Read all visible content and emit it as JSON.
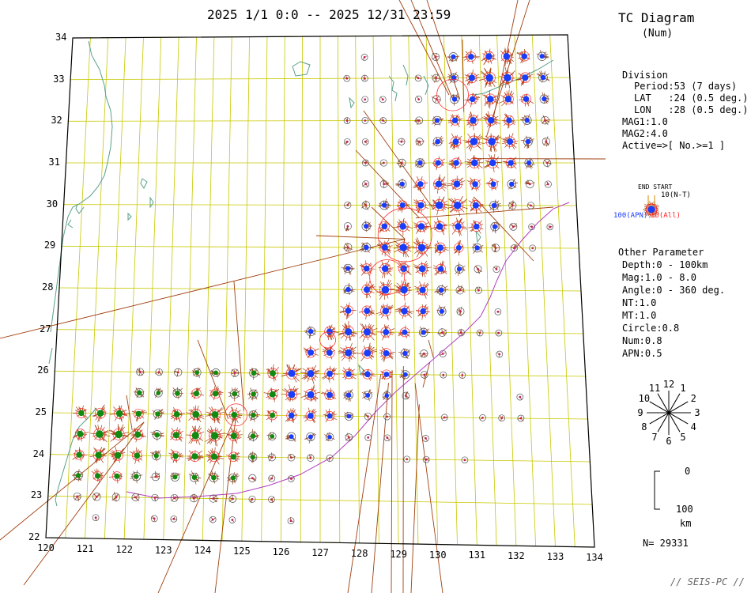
{
  "header": {
    "period_title": "2025 1/1 0:0 -- 2025 12/31 23:59"
  },
  "diagram": {
    "title": "TC Diagram",
    "subtitle": "(Num)"
  },
  "axes": {
    "lat_labels": [
      "34",
      "33",
      "32",
      "31",
      "30",
      "29",
      "28",
      "27",
      "26",
      "25",
      "24",
      "23",
      "22"
    ],
    "lon_labels": [
      "120",
      "121",
      "122",
      "123",
      "124",
      "125",
      "126",
      "127",
      "128",
      "129",
      "130",
      "131",
      "132",
      "133",
      "134"
    ]
  },
  "division": {
    "heading": "Division",
    "period": "Period:53 (7 days)",
    "lat": "LAT   :24 (0.5 deg.)",
    "lon": "LON   :28 (0.5 deg.)",
    "mag1": "MAG1:1.0",
    "mag2": "MAG2:4.0",
    "active": "Active=>[ No.>=1 ]"
  },
  "legend": {
    "end_start": "END START",
    "nt": "10(N-T)",
    "apn": "100(APN)",
    "all": "10(All)",
    "colors": {
      "apn": "#1a3cff",
      "all": "#ff2020",
      "nt": "#d48a00",
      "dots": "#008000"
    }
  },
  "other": {
    "heading": "Other Parameter",
    "depth": "Depth:0 - 100km",
    "mag": "Mag:1.0 - 8.0",
    "angle": "Angle:0 - 360 deg.",
    "nt": "NT:1.0",
    "mt": "MT:1.0",
    "circle": "Circle:0.8",
    "num": "Num:0.8",
    "apn": "APN:0.5"
  },
  "clock": {
    "labels": [
      "12",
      "1",
      "2",
      "3",
      "4",
      "5",
      "6",
      "7",
      "8",
      "9",
      "10",
      "11"
    ]
  },
  "scale": {
    "top": "0",
    "bottom": "100",
    "unit": "km"
  },
  "count": "N= 29331",
  "footer": "// SEIS-PC //"
}
